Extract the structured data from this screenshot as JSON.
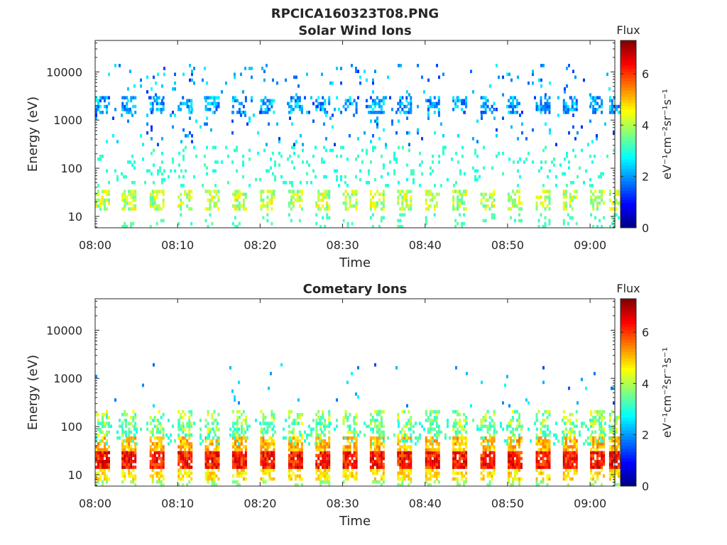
{
  "figure_title": "RPCICA160323T08.PNG",
  "chart_data": [
    {
      "type": "heatmap",
      "title": "Solar Wind Ions",
      "xlabel": "Time",
      "ylabel": "Energy (eV)",
      "y_scale": "log",
      "ylim": [
        5.8,
        45000
      ],
      "xlim": [
        "08:00",
        "09:03"
      ],
      "x_ticks": [
        "08:00",
        "08:10",
        "08:20",
        "08:30",
        "08:40",
        "08:50",
        "09:00"
      ],
      "y_ticks": [
        {
          "value": 10,
          "label": "10"
        },
        {
          "value": 100,
          "label": "100"
        },
        {
          "value": 1000,
          "label": "1000"
        },
        {
          "value": 10000,
          "label": "10000"
        }
      ],
      "colorbar": {
        "title": "Flux",
        "unit": "eV⁻¹cm⁻²sr⁻¹s⁻¹",
        "range": [
          0,
          7.3
        ],
        "ticks": [
          "0",
          "2",
          "4",
          "6"
        ],
        "colormap": "jet"
      },
      "bursts_minutes": [
        0,
        3.2,
        6.6,
        10,
        13.3,
        16.6,
        20,
        23.4,
        26.7,
        30,
        33.3,
        36.6,
        40,
        43.3,
        46.7,
        50,
        53.4,
        56.7,
        60,
        62.3
      ],
      "bands": [
        {
          "e_min": 14,
          "e_max": 35,
          "level_min": 3.3,
          "level_max": 4.8,
          "density": 0.55
        },
        {
          "e_min": 6,
          "e_max": 12,
          "level_min": 3.0,
          "level_max": 3.5,
          "density": 0.15
        },
        {
          "e_min": 1400,
          "e_max": 3000,
          "level_min": 1.4,
          "level_max": 2.8,
          "density": 0.5
        }
      ],
      "background": [
        {
          "e_min": 40,
          "e_max": 300,
          "level_min": 2.8,
          "level_max": 3.3,
          "density": 0.09
        },
        {
          "e_min": 300,
          "e_max": 15000,
          "level_min": 1.2,
          "level_max": 2.8,
          "density": 0.04
        }
      ]
    },
    {
      "type": "heatmap",
      "title": "Cometary Ions",
      "xlabel": "Time",
      "ylabel": "Energy (eV)",
      "y_scale": "log",
      "ylim": [
        5.8,
        45000
      ],
      "xlim": [
        "08:00",
        "09:03"
      ],
      "x_ticks": [
        "08:00",
        "08:10",
        "08:20",
        "08:30",
        "08:40",
        "08:50",
        "09:00"
      ],
      "y_ticks": [
        {
          "value": 10,
          "label": "10"
        },
        {
          "value": 100,
          "label": "100"
        },
        {
          "value": 1000,
          "label": "1000"
        },
        {
          "value": 10000,
          "label": "10000"
        }
      ],
      "colorbar": {
        "title": "Flux",
        "unit": "eV⁻¹cm⁻²sr⁻¹s⁻¹",
        "range": [
          0,
          7.3
        ],
        "ticks": [
          "0",
          "2",
          "4",
          "6"
        ],
        "colormap": "jet"
      },
      "bursts_minutes": [
        0,
        3.2,
        6.6,
        10,
        13.3,
        16.6,
        20,
        23.4,
        26.7,
        30,
        33.3,
        36.6,
        40,
        43.3,
        46.7,
        50,
        53.4,
        56.7,
        60,
        62.3
      ],
      "bands": [
        {
          "e_min": 14,
          "e_max": 30,
          "level_min": 5.6,
          "level_max": 6.9,
          "density": 0.9
        },
        {
          "e_min": 30,
          "e_max": 60,
          "level_min": 4.6,
          "level_max": 5.6,
          "density": 0.75
        },
        {
          "e_min": 8,
          "e_max": 14,
          "level_min": 4.3,
          "level_max": 5.2,
          "density": 0.6
        },
        {
          "e_min": 60,
          "e_max": 220,
          "level_min": 3.0,
          "level_max": 4.6,
          "density": 0.45
        },
        {
          "e_min": 6,
          "e_max": 8,
          "level_min": 3.4,
          "level_max": 4.0,
          "density": 0.3
        }
      ],
      "background": [
        {
          "e_min": 40,
          "e_max": 150,
          "level_min": 2.8,
          "level_max": 3.5,
          "density": 0.12
        },
        {
          "e_min": 250,
          "e_max": 2000,
          "level_min": 1.4,
          "level_max": 2.8,
          "density": 0.015
        }
      ]
    }
  ]
}
